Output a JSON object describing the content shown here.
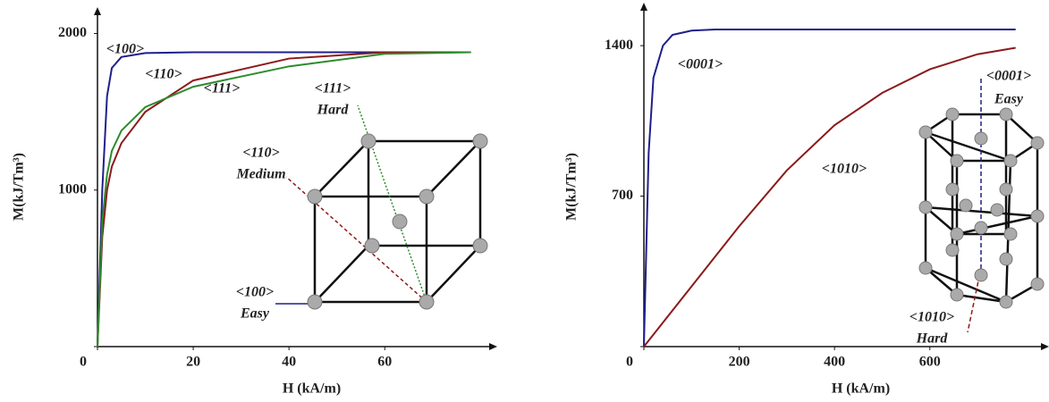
{
  "chart_data": [
    {
      "type": "line",
      "xlabel": "H (kA/m)",
      "ylabel": "M(kJ/Tm³)",
      "xlim": [
        0,
        82
      ],
      "ylim": [
        0,
        2100
      ],
      "xticks": [
        0,
        20,
        40,
        60
      ],
      "yticks": [
        0,
        1000,
        2000
      ],
      "series": [
        {
          "name": "<100>",
          "color": "#1f1f8c",
          "x": [
            0,
            1,
            2,
            3,
            5,
            10,
            20,
            40,
            60,
            78
          ],
          "values": [
            0,
            1000,
            1600,
            1780,
            1850,
            1875,
            1880,
            1880,
            1880,
            1880
          ]
        },
        {
          "name": "<110>",
          "color": "#8b1a1a",
          "x": [
            0,
            1,
            2,
            3,
            5,
            10,
            20,
            40,
            60,
            78
          ],
          "values": [
            0,
            700,
            1000,
            1150,
            1300,
            1500,
            1700,
            1840,
            1880,
            1880
          ]
        },
        {
          "name": "<111>",
          "color": "#2e8b2e",
          "x": [
            0,
            1,
            2,
            3,
            5,
            10,
            20,
            40,
            60,
            78
          ],
          "values": [
            0,
            800,
            1100,
            1250,
            1380,
            1530,
            1660,
            1790,
            1870,
            1880
          ]
        }
      ],
      "annotations": [
        {
          "text": "<111>",
          "color": "#2e8b2e"
        },
        {
          "text": "Hard",
          "color": "#2e8b2e"
        },
        {
          "text": "<110>",
          "color": "#8b1a1a"
        },
        {
          "text": "Medium",
          "color": "#8b1a1a"
        },
        {
          "text": "<100>",
          "color": "#1f1f8c"
        },
        {
          "text": "Easy",
          "color": "#1f1f8c"
        }
      ]
    },
    {
      "type": "line",
      "xlabel": "H (kA/m)",
      "ylabel": "M(kJ/Tm³)",
      "xlim": [
        0,
        835
      ],
      "ylim": [
        0,
        1550
      ],
      "xticks": [
        0,
        200,
        400,
        600
      ],
      "yticks": [
        0,
        700,
        1400
      ],
      "series": [
        {
          "name": "<0001>",
          "color": "#1f1f8c",
          "x": [
            0,
            10,
            20,
            40,
            60,
            100,
            150,
            780
          ],
          "values": [
            0,
            900,
            1250,
            1400,
            1450,
            1470,
            1475,
            1475
          ]
        },
        {
          "name": "<1010>",
          "color": "#8b1a1a",
          "x": [
            0,
            100,
            200,
            300,
            400,
            500,
            600,
            700,
            780
          ],
          "values": [
            0,
            280,
            560,
            820,
            1030,
            1180,
            1290,
            1360,
            1390
          ]
        }
      ],
      "annotations": [
        {
          "text": "<0001>",
          "color": "#1f1f8c"
        },
        {
          "text": "Easy",
          "color": "#1f1f8c"
        },
        {
          "text": "<1010>",
          "color": "#8b1a1a"
        },
        {
          "text": "Hard",
          "color": "#8b1a1a"
        }
      ]
    }
  ]
}
